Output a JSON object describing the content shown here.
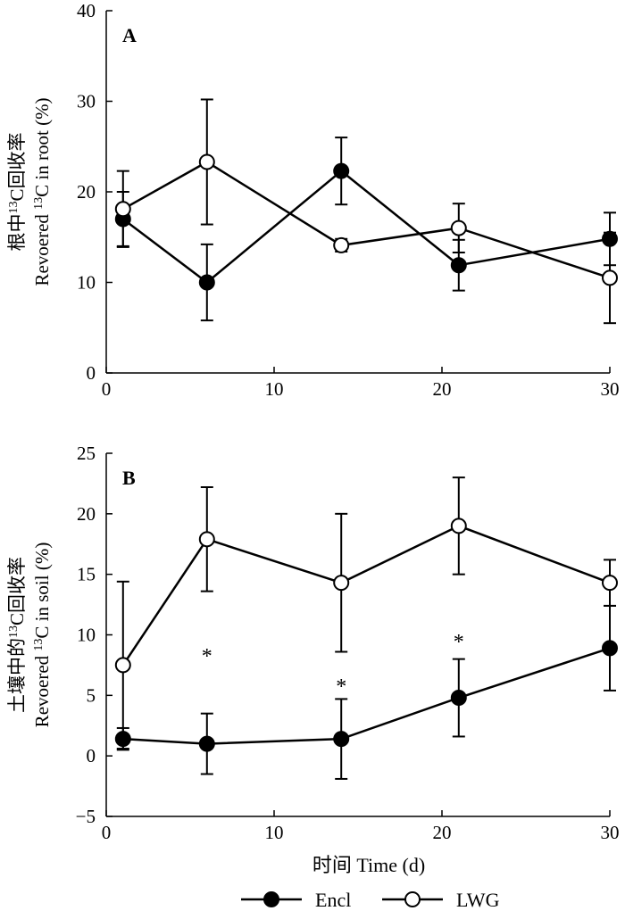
{
  "chart_data": [
    {
      "type": "line",
      "panel_label": "A",
      "ylabel_cn": "根中",
      "ylabel_cn_after": "C回收率",
      "ylabel_en_prefix": "Revoered ",
      "ylabel_en_suffix": "C in root (%)",
      "isotope_sup": "13",
      "xlim": [
        0,
        30
      ],
      "ylim": [
        0,
        40
      ],
      "xticks": [
        0,
        10,
        20,
        30
      ],
      "yticks": [
        0,
        10,
        20,
        30,
        40
      ],
      "ytick_labels": [
        "0",
        "10",
        "20",
        "30",
        "40"
      ],
      "x": [
        1,
        6,
        14,
        21,
        30
      ],
      "series": [
        {
          "name": "Encl",
          "marker": "filled",
          "values": [
            17.0,
            10.0,
            22.3,
            11.9,
            14.8
          ],
          "err": [
            3.0,
            4.2,
            3.7,
            2.8,
            2.9
          ]
        },
        {
          "name": "LWG",
          "marker": "open",
          "values": [
            18.1,
            23.3,
            14.1,
            16.0,
            10.5
          ],
          "err": [
            4.2,
            6.9,
            0.7,
            2.7,
            5.0
          ]
        }
      ],
      "annotations": [],
      "grid": false
    },
    {
      "type": "line",
      "panel_label": "B",
      "ylabel_cn": "土壤中的",
      "ylabel_cn_after": "C回收率",
      "ylabel_en_prefix": "Revoered ",
      "ylabel_en_suffix": "C in soil (%)",
      "isotope_sup": "13",
      "xlim": [
        0,
        30
      ],
      "ylim": [
        -5,
        25
      ],
      "xticks": [
        0,
        10,
        20,
        30
      ],
      "yticks": [
        -5,
        0,
        5,
        10,
        15,
        20,
        25
      ],
      "ytick_labels": [
        "−5",
        "0",
        "5",
        "10",
        "15",
        "20",
        "25"
      ],
      "x": [
        1,
        6,
        14,
        21,
        30
      ],
      "series": [
        {
          "name": "Encl",
          "marker": "filled",
          "values": [
            1.4,
            1.0,
            1.4,
            4.8,
            8.9
          ],
          "err": [
            0.9,
            2.5,
            3.3,
            3.2,
            3.5
          ]
        },
        {
          "name": "LWG",
          "marker": "open",
          "values": [
            7.5,
            17.9,
            14.3,
            19.0,
            14.3
          ],
          "err": [
            6.9,
            4.3,
            5.7,
            4.0,
            1.9
          ]
        }
      ],
      "annotations": [
        {
          "x": 6,
          "y": 8.4,
          "text": "*"
        },
        {
          "x": 14,
          "y": 5.9,
          "text": "*"
        },
        {
          "x": 21,
          "y": 9.6,
          "text": "*"
        }
      ],
      "grid": false
    }
  ],
  "xlabel": "时间 Time (d)",
  "legend": [
    {
      "name": "Encl",
      "marker": "filled"
    },
    {
      "name": "LWG",
      "marker": "open"
    }
  ],
  "colors": {
    "line": "#000000",
    "open_fill": "#ffffff",
    "filled_fill": "#000000"
  }
}
